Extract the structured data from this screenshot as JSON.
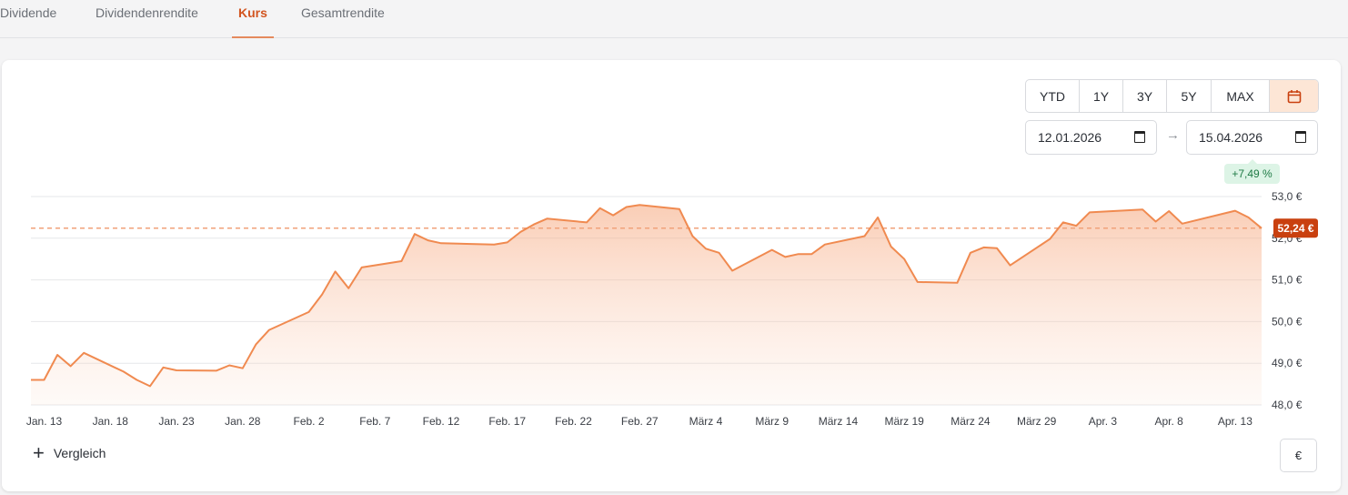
{
  "tabs": [
    {
      "label": "Dividende",
      "active": false
    },
    {
      "label": "Dividendenrendite",
      "active": false
    },
    {
      "label": "Kurs",
      "active": true
    },
    {
      "label": "Gesamtrendite",
      "active": false
    }
  ],
  "range_buttons": [
    "YTD",
    "1Y",
    "3Y",
    "5Y",
    "MAX"
  ],
  "calendar_icon": "calendar-icon",
  "date_from": "12.01.2026",
  "date_to": "15.04.2026",
  "date_arrow": "→",
  "performance": "+7,49 %",
  "compare_label": "Vergleich",
  "currency_label": "€",
  "colors": {
    "accent": "#d2541f",
    "line": "#f08a50",
    "badge_bg": "#ddf4e6",
    "badge_text": "#1f7a45",
    "price_tag": "#c9400f"
  },
  "chart_data": {
    "type": "area",
    "current_value": 52.24,
    "current_label": "52,24 €",
    "y_ticks": [
      {
        "value": 53.0,
        "label": "53,0 €"
      },
      {
        "value": 52.0,
        "label": "52,0 €"
      },
      {
        "value": 51.0,
        "label": "51,0 €"
      },
      {
        "value": 50.0,
        "label": "50,0 €"
      },
      {
        "value": 49.0,
        "label": "49,0 €"
      },
      {
        "value": 48.0,
        "label": "48,0 €"
      }
    ],
    "ylim": [
      48.0,
      53.0
    ],
    "x_ticks": [
      {
        "date": "2026-01-13",
        "label": "Jan. 13"
      },
      {
        "date": "2026-01-18",
        "label": "Jan. 18"
      },
      {
        "date": "2026-01-23",
        "label": "Jan. 23"
      },
      {
        "date": "2026-01-28",
        "label": "Jan. 28"
      },
      {
        "date": "2026-02-02",
        "label": "Feb. 2"
      },
      {
        "date": "2026-02-07",
        "label": "Feb. 7"
      },
      {
        "date": "2026-02-12",
        "label": "Feb. 12"
      },
      {
        "date": "2026-02-17",
        "label": "Feb. 17"
      },
      {
        "date": "2026-02-22",
        "label": "Feb. 22"
      },
      {
        "date": "2026-02-27",
        "label": "Feb. 27"
      },
      {
        "date": "2026-03-04",
        "label": "März 4"
      },
      {
        "date": "2026-03-09",
        "label": "März 9"
      },
      {
        "date": "2026-03-14",
        "label": "März 14"
      },
      {
        "date": "2026-03-19",
        "label": "März 19"
      },
      {
        "date": "2026-03-24",
        "label": "März 24"
      },
      {
        "date": "2026-03-29",
        "label": "März 29"
      },
      {
        "date": "2026-04-03",
        "label": "Apr. 3"
      },
      {
        "date": "2026-04-08",
        "label": "Apr. 8"
      },
      {
        "date": "2026-04-13",
        "label": "Apr. 13"
      }
    ],
    "xlim": [
      "2026-01-12",
      "2026-04-15"
    ],
    "series": [
      {
        "points": [
          [
            "2026-01-12",
            48.6
          ],
          [
            "2026-01-13",
            48.6
          ],
          [
            "2026-01-14",
            49.2
          ],
          [
            "2026-01-15",
            48.93
          ],
          [
            "2026-01-16",
            49.25
          ],
          [
            "2026-01-19",
            48.8
          ],
          [
            "2026-01-20",
            48.6
          ],
          [
            "2026-01-21",
            48.45
          ],
          [
            "2026-01-22",
            48.9
          ],
          [
            "2026-01-23",
            48.83
          ],
          [
            "2026-01-26",
            48.82
          ],
          [
            "2026-01-27",
            48.95
          ],
          [
            "2026-01-28",
            48.88
          ],
          [
            "2026-01-29",
            49.45
          ],
          [
            "2026-01-30",
            49.8
          ],
          [
            "2026-02-02",
            50.23
          ],
          [
            "2026-02-03",
            50.65
          ],
          [
            "2026-02-04",
            51.2
          ],
          [
            "2026-02-05",
            50.8
          ],
          [
            "2026-02-06",
            51.3
          ],
          [
            "2026-02-09",
            51.45
          ],
          [
            "2026-02-10",
            52.1
          ],
          [
            "2026-02-11",
            51.95
          ],
          [
            "2026-02-12",
            51.88
          ],
          [
            "2026-02-16",
            51.85
          ],
          [
            "2026-02-17",
            51.9
          ],
          [
            "2026-02-18",
            52.15
          ],
          [
            "2026-02-19",
            52.33
          ],
          [
            "2026-02-20",
            52.47
          ],
          [
            "2026-02-23",
            52.38
          ],
          [
            "2026-02-24",
            52.72
          ],
          [
            "2026-02-25",
            52.55
          ],
          [
            "2026-02-26",
            52.75
          ],
          [
            "2026-02-27",
            52.8
          ],
          [
            "2026-03-02",
            52.7
          ],
          [
            "2026-03-03",
            52.05
          ],
          [
            "2026-03-04",
            51.75
          ],
          [
            "2026-03-05",
            51.65
          ],
          [
            "2026-03-06",
            51.22
          ],
          [
            "2026-03-09",
            51.72
          ],
          [
            "2026-03-10",
            51.55
          ],
          [
            "2026-03-11",
            51.62
          ],
          [
            "2026-03-12",
            51.62
          ],
          [
            "2026-03-13",
            51.85
          ],
          [
            "2026-03-16",
            52.05
          ],
          [
            "2026-03-17",
            52.5
          ],
          [
            "2026-03-18",
            51.8
          ],
          [
            "2026-03-19",
            51.5
          ],
          [
            "2026-03-20",
            50.95
          ],
          [
            "2026-03-23",
            50.93
          ],
          [
            "2026-03-24",
            51.65
          ],
          [
            "2026-03-25",
            51.78
          ],
          [
            "2026-03-26",
            51.76
          ],
          [
            "2026-03-27",
            51.35
          ],
          [
            "2026-03-30",
            51.98
          ],
          [
            "2026-03-31",
            52.38
          ],
          [
            "2026-04-01",
            52.3
          ],
          [
            "2026-04-02",
            52.62
          ],
          [
            "2026-04-06",
            52.69
          ],
          [
            "2026-04-07",
            52.4
          ],
          [
            "2026-04-08",
            52.65
          ],
          [
            "2026-04-09",
            52.35
          ],
          [
            "2026-04-13",
            52.66
          ],
          [
            "2026-04-14",
            52.5
          ],
          [
            "2026-04-15",
            52.24
          ]
        ]
      }
    ],
    "grid": true,
    "reference_line": 52.24
  }
}
